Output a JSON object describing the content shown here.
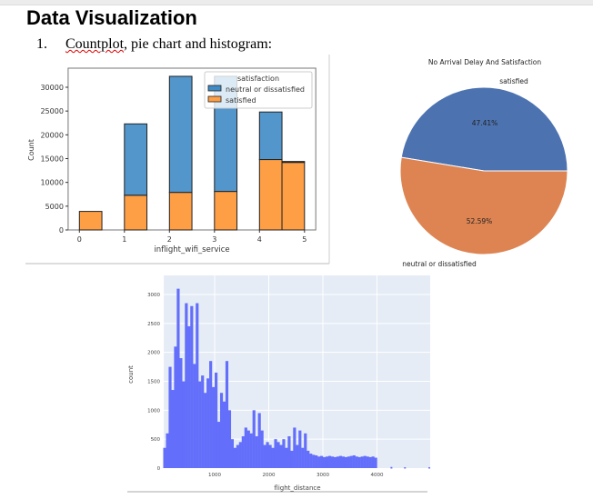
{
  "document": {
    "heading": "Data Visualization",
    "list_item": {
      "number": "1.",
      "misspelled_word": "Countplot",
      "text": ", pie chart and histogram:"
    }
  },
  "chart_data": [
    {
      "type": "bar",
      "stacked": true,
      "xlabel": "inflight_wifi_service",
      "ylabel": "Count",
      "xticks": [
        "0",
        "1",
        "2",
        "3",
        "4",
        "5"
      ],
      "yticks": [
        "0",
        "5000",
        "10000",
        "15000",
        "20000",
        "25000",
        "30000"
      ],
      "xlim": [
        -0.25,
        5.25
      ],
      "ylim": [
        0,
        34000
      ],
      "legend": {
        "title": "satisfaction",
        "placement": "top-right"
      },
      "bins": [
        [
          0,
          0.5
        ],
        [
          1,
          1.5
        ],
        [
          2,
          2.5
        ],
        [
          3,
          3.5
        ],
        [
          4,
          4.5
        ],
        [
          4.5,
          5
        ]
      ],
      "series": [
        {
          "name": "neutral or dissatisfied",
          "color": "#3f8bc6",
          "values": [
            0,
            15000,
            24400,
            24200,
            10000,
            200
          ]
        },
        {
          "name": "satisfied",
          "color": "#ff9f45",
          "values": [
            3900,
            7300,
            7900,
            8100,
            14800,
            14200
          ]
        }
      ]
    },
    {
      "type": "pie",
      "title": "No Arrival Delay And Satisfaction",
      "slices": [
        {
          "label": "satisfied",
          "value": 47.41,
          "pct_label": "47.41%",
          "color": "#4c72b0"
        },
        {
          "label": "neutral or dissatisfied",
          "value": 52.59,
          "pct_label": "52.59%",
          "color": "#dd8452"
        }
      ]
    },
    {
      "type": "bar",
      "subtype": "histogram",
      "xlabel": "flight_distance",
      "ylabel": "count",
      "xticks": [
        "1000",
        "2000",
        "3000",
        "4000"
      ],
      "yticks": [
        "0",
        "500",
        "1000",
        "1500",
        "2000",
        "2500",
        "3000"
      ],
      "xlim": [
        60,
        5000
      ],
      "ylim": [
        0,
        3200
      ],
      "grid": true,
      "color": "#636efa",
      "bin_width": 50,
      "bin_start": 50,
      "values": [
        350,
        600,
        1750,
        1350,
        2100,
        3100,
        1900,
        1500,
        2850,
        2450,
        2800,
        1800,
        2850,
        1500,
        1600,
        1300,
        1550,
        1850,
        1400,
        1650,
        800,
        1300,
        1150,
        1850,
        1000,
        500,
        350,
        400,
        450,
        550,
        700,
        650,
        600,
        1000,
        550,
        950,
        650,
        400,
        450,
        400,
        350,
        500,
        450,
        400,
        500,
        350,
        550,
        300,
        700,
        400,
        650,
        350,
        600,
        300,
        250,
        230,
        220,
        200,
        210,
        190,
        200,
        210,
        200,
        190,
        200,
        210,
        200,
        190,
        200,
        210,
        220,
        200,
        190,
        200,
        210,
        200,
        190,
        200,
        180
      ],
      "outliers": [
        [
          4250,
          20
        ],
        [
          4500,
          15
        ],
        [
          4950,
          15
        ]
      ]
    }
  ]
}
